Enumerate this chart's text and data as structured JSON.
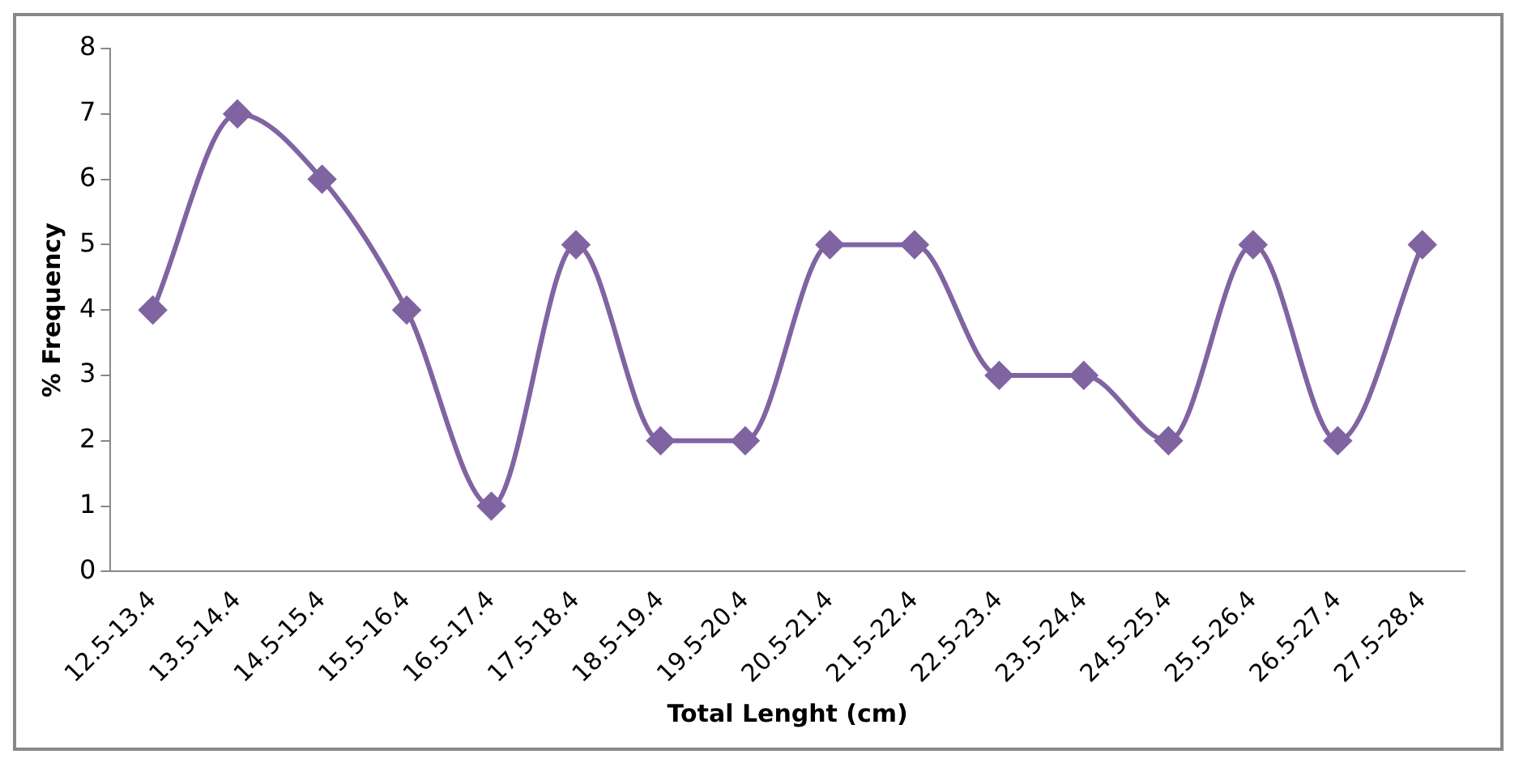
{
  "chart_data": {
    "type": "line",
    "xlabel": "Total Lenght (cm)",
    "ylabel": "% Frequency",
    "categories": [
      "12.5-13.4",
      "13.5-14.4",
      "14.5-15.4",
      "15.5-16.4",
      "16.5-17.4",
      "17.5-18.4",
      "18.5-19.4",
      "19.5-20.4",
      "20.5-21.4",
      "21.5-22.4",
      "22.5-23.4",
      "23.5-24.4",
      "24.5-25.4",
      "25.5-26.4",
      "26.5-27.4",
      "27.5-28.4"
    ],
    "series": [
      {
        "color": "#8064a2",
        "values": [
          4,
          7,
          6,
          4,
          1,
          5,
          2,
          2,
          5,
          5,
          3,
          3,
          2,
          5,
          2,
          5
        ]
      }
    ],
    "ylim": [
      0,
      8
    ],
    "yticks": [
      0,
      1,
      2,
      3,
      4,
      5,
      6,
      7,
      8
    ],
    "grid": false,
    "marker": "diamond",
    "line_style": "solid"
  }
}
